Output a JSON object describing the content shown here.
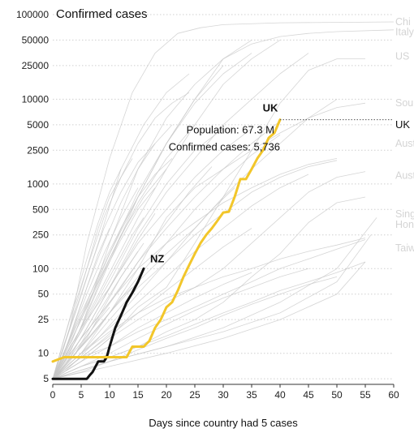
{
  "chart_data": {
    "type": "line",
    "title": "Confirmed cases",
    "xlabel": "Days since country had 5 cases",
    "ylabel": "",
    "xlim": [
      0,
      60
    ],
    "ylim": [
      4.3,
      100000
    ],
    "yscale": "log",
    "grid": "horizontal dotted",
    "x_ticks": [
      0,
      5,
      10,
      15,
      20,
      25,
      30,
      35,
      40,
      45,
      50,
      55,
      60
    ],
    "y_ticks": [
      5,
      10,
      25,
      50,
      100,
      250,
      500,
      1000,
      2500,
      5000,
      10000,
      25000,
      50000,
      100000
    ],
    "x_tick_labels": [
      "0",
      "5",
      "10",
      "15",
      "20",
      "25",
      "30",
      "35",
      "40",
      "45",
      "50",
      "55",
      "60"
    ],
    "y_tick_labels": [
      "5",
      "10",
      "25",
      "50",
      "100",
      "250",
      "500",
      "1000",
      "2500",
      "5000",
      "10000",
      "25000",
      "50000",
      "100000"
    ],
    "highlight_series": [
      {
        "name": "NZ",
        "color": "#111111",
        "x": [
          0,
          1,
          2,
          3,
          4,
          5,
          6,
          6.5,
          7,
          8,
          9,
          9.5,
          10,
          11,
          12,
          13,
          14,
          15,
          16
        ],
        "y": [
          5,
          5,
          5,
          5,
          5,
          5,
          5,
          5.5,
          6,
          8,
          8,
          9,
          12,
          20,
          28,
          40,
          52,
          70,
          100
        ]
      },
      {
        "name": "UK",
        "color": "#f2c62a",
        "x": [
          0,
          1,
          2,
          5,
          8,
          10,
          13,
          14,
          16,
          17,
          18,
          19,
          20,
          21,
          22,
          23,
          24,
          25,
          26,
          27,
          28,
          29,
          30,
          31,
          32,
          33,
          34,
          35,
          36,
          37,
          38,
          39,
          40
        ],
        "y": [
          8,
          8.5,
          9,
          9,
          9,
          9,
          9,
          12,
          12,
          14,
          20,
          25,
          35,
          40,
          55,
          80,
          110,
          150,
          200,
          250,
          300,
          370,
          460,
          470,
          700,
          1140,
          1140,
          1500,
          2000,
          2500,
          3500,
          4000,
          5736
        ]
      }
    ],
    "background_series": [
      {
        "x": [
          0,
          3,
          6,
          10,
          14,
          18,
          22,
          26,
          30,
          40,
          50,
          60
        ],
        "y": [
          5,
          20,
          200,
          2000,
          12000,
          35000,
          60000,
          70000,
          76000,
          80000,
          81000,
          82000
        ]
      },
      {
        "x": [
          0,
          5,
          10,
          15,
          20,
          25,
          30,
          35,
          40,
          45,
          50,
          60
        ],
        "y": [
          5,
          20,
          200,
          1500,
          6000,
          15000,
          30000,
          45000,
          55000,
          60000,
          63000,
          66000
        ]
      },
      {
        "x": [
          0,
          5,
          10,
          15,
          20,
          25,
          30,
          35,
          40,
          45,
          50,
          55
        ],
        "y": [
          5,
          8,
          15,
          35,
          60,
          200,
          700,
          2500,
          9000,
          22000,
          30000,
          30000
        ]
      },
      {
        "x": [
          0,
          5,
          10,
          15,
          20,
          25,
          30,
          35,
          40,
          45,
          50,
          55
        ],
        "y": [
          5,
          10,
          30,
          100,
          400,
          900,
          1500,
          2500,
          4000,
          6000,
          8000,
          9000
        ]
      },
      {
        "x": [
          0,
          4,
          8,
          12,
          16,
          20,
          24
        ],
        "y": [
          5,
          30,
          200,
          1500,
          5000,
          12000,
          20000
        ]
      },
      {
        "x": [
          0,
          5,
          10,
          15,
          20,
          25,
          30
        ],
        "y": [
          5,
          20,
          120,
          700,
          3000,
          10000,
          25000
        ]
      },
      {
        "x": [
          0,
          5,
          10,
          15,
          20,
          25,
          30,
          35
        ],
        "y": [
          5,
          25,
          150,
          800,
          3000,
          10000,
          30000,
          50000
        ]
      },
      {
        "x": [
          0,
          5,
          10,
          15,
          20,
          25,
          30,
          35,
          40,
          45,
          50,
          55
        ],
        "y": [
          5,
          8,
          15,
          25,
          40,
          60,
          100,
          200,
          400,
          800,
          1200,
          1400
        ]
      },
      {
        "x": [
          0,
          5,
          10,
          15,
          20,
          25,
          30,
          35,
          40,
          45,
          50,
          55
        ],
        "y": [
          5,
          7,
          9,
          12,
          18,
          25,
          40,
          80,
          150,
          350,
          600,
          700
        ]
      },
      {
        "x": [
          0,
          10,
          20,
          30,
          40,
          50,
          57
        ],
        "y": [
          5,
          8,
          12,
          20,
          40,
          100,
          400
        ]
      },
      {
        "x": [
          0,
          10,
          20,
          30,
          40,
          50,
          56
        ],
        "y": [
          5,
          8,
          12,
          18,
          30,
          70,
          250
        ]
      },
      {
        "x": [
          0,
          10,
          20,
          30,
          40,
          50,
          55
        ],
        "y": [
          5,
          7,
          10,
          15,
          25,
          50,
          120
        ]
      },
      {
        "x": [
          0,
          5,
          10,
          15,
          20,
          25,
          30,
          35,
          40,
          45,
          50,
          55
        ],
        "y": [
          5,
          10,
          18,
          30,
          45,
          60,
          80,
          100,
          130,
          160,
          190,
          230
        ]
      },
      {
        "x": [
          0,
          5,
          10,
          15,
          20,
          25,
          30,
          35,
          40,
          45,
          50,
          55
        ],
        "y": [
          5,
          9,
          12,
          18,
          25,
          35,
          50,
          70,
          100,
          130,
          170,
          220
        ]
      },
      {
        "x": [
          0,
          5,
          10,
          15,
          20,
          25,
          30,
          35,
          40,
          45,
          50,
          55
        ],
        "y": [
          5,
          7,
          9,
          12,
          16,
          22,
          30,
          40,
          55,
          70,
          90,
          120
        ]
      },
      {
        "x": [
          0,
          5,
          10,
          15,
          20,
          25,
          30,
          35,
          40,
          45,
          50
        ],
        "y": [
          5,
          12,
          30,
          70,
          150,
          300,
          700,
          1500,
          3000,
          6000,
          10000
        ]
      },
      {
        "x": [
          0,
          5,
          10,
          15,
          20,
          25,
          30,
          35,
          40,
          45
        ],
        "y": [
          5,
          15,
          60,
          250,
          800,
          2000,
          5000,
          10000,
          20000,
          35000
        ]
      },
      {
        "x": [
          0,
          5,
          10,
          15,
          20,
          25,
          30,
          35,
          40
        ],
        "y": [
          5,
          20,
          90,
          400,
          1500,
          5000,
          15000,
          30000,
          50000
        ]
      },
      {
        "x": [
          0,
          5,
          10,
          15,
          20,
          25,
          30,
          35
        ],
        "y": [
          5,
          30,
          150,
          700,
          3000,
          9000,
          20000,
          35000
        ]
      },
      {
        "x": [
          0,
          3,
          6,
          9,
          12,
          15,
          18,
          21,
          24
        ],
        "y": [
          5,
          25,
          100,
          400,
          1200,
          3000,
          6000,
          9000,
          12000
        ]
      },
      {
        "x": [
          0,
          3,
          6,
          9,
          12,
          15,
          18,
          21
        ],
        "y": [
          5,
          15,
          60,
          200,
          600,
          1500,
          3000,
          5000
        ]
      },
      {
        "x": [
          0,
          3,
          6,
          9,
          12,
          15,
          18
        ],
        "y": [
          5,
          20,
          80,
          300,
          800,
          1800,
          3000
        ]
      },
      {
        "x": [
          0,
          3,
          6,
          9,
          12,
          15,
          18,
          21
        ],
        "y": [
          5,
          12,
          40,
          120,
          300,
          700,
          1300,
          2000
        ]
      },
      {
        "x": [
          0,
          3,
          6,
          9,
          12,
          15,
          18
        ],
        "y": [
          5,
          10,
          30,
          90,
          220,
          500,
          900
        ]
      },
      {
        "x": [
          0,
          3,
          6,
          9,
          12,
          15
        ],
        "y": [
          5,
          15,
          50,
          150,
          400,
          900
        ]
      },
      {
        "x": [
          0,
          3,
          6,
          9,
          12,
          15,
          18
        ],
        "y": [
          5,
          9,
          20,
          45,
          100,
          220,
          450
        ]
      },
      {
        "x": [
          0,
          3,
          6,
          9,
          12,
          15
        ],
        "y": [
          5,
          8,
          15,
          35,
          80,
          160
        ]
      },
      {
        "x": [
          0,
          2,
          4,
          6,
          8,
          10,
          12,
          14
        ],
        "y": [
          5,
          12,
          35,
          100,
          300,
          700,
          1200,
          2000
        ]
      },
      {
        "x": [
          0,
          2,
          4,
          6,
          8,
          10,
          12
        ],
        "y": [
          5,
          15,
          45,
          130,
          350,
          800,
          1500
        ]
      },
      {
        "x": [
          0,
          2,
          4,
          6,
          8,
          10
        ],
        "y": [
          5,
          10,
          25,
          60,
          150,
          300
        ]
      },
      {
        "x": [
          0,
          2,
          4,
          6,
          8,
          10,
          12,
          14,
          16
        ],
        "y": [
          5,
          8,
          14,
          25,
          45,
          80,
          140,
          250,
          400
        ]
      },
      {
        "x": [
          0,
          4,
          8,
          12,
          16,
          20,
          24,
          28
        ],
        "y": [
          5,
          10,
          25,
          60,
          150,
          350,
          800,
          1600
        ]
      },
      {
        "x": [
          0,
          4,
          8,
          12,
          16,
          20,
          24,
          28,
          32
        ],
        "y": [
          5,
          8,
          15,
          30,
          60,
          120,
          250,
          500,
          900
        ]
      },
      {
        "x": [
          0,
          5,
          10,
          15,
          20,
          25,
          30,
          35
        ],
        "y": [
          5,
          9,
          16,
          30,
          55,
          100,
          180,
          300
        ]
      },
      {
        "x": [
          0,
          5,
          10,
          15,
          20,
          25,
          30,
          35,
          40
        ],
        "y": [
          5,
          12,
          30,
          80,
          200,
          500,
          1100,
          2200,
          3800
        ]
      },
      {
        "x": [
          0,
          5,
          10,
          15,
          20,
          25,
          30,
          35,
          40,
          45
        ],
        "y": [
          5,
          10,
          20,
          40,
          80,
          160,
          300,
          550,
          900,
          1300
        ]
      },
      {
        "x": [
          0,
          5,
          10,
          15,
          20,
          25,
          30
        ],
        "y": [
          5,
          18,
          70,
          300,
          1000,
          2500,
          4500
        ]
      },
      {
        "x": [
          0,
          5,
          10,
          15,
          20,
          25
        ],
        "y": [
          5,
          25,
          130,
          600,
          2000,
          5000
        ]
      },
      {
        "x": [
          0,
          4,
          8,
          12,
          16,
          20
        ],
        "y": [
          5,
          20,
          70,
          250,
          700,
          1500
        ]
      },
      {
        "x": [
          0,
          4,
          8,
          12,
          16
        ],
        "y": [
          5,
          10,
          30,
          80,
          200
        ]
      },
      {
        "x": [
          0,
          5,
          10,
          15,
          20,
          25,
          30,
          35,
          40,
          45,
          50
        ],
        "y": [
          5,
          6,
          8,
          11,
          15,
          20,
          28,
          38,
          50,
          65,
          80
        ]
      },
      {
        "x": [
          0,
          5,
          10,
          15,
          20,
          25,
          30,
          35,
          40,
          45
        ],
        "y": [
          5,
          7,
          10,
          15,
          22,
          32,
          45,
          60,
          80,
          100
        ]
      },
      {
        "x": [
          0,
          5,
          10,
          15,
          20,
          25,
          30,
          35
        ],
        "y": [
          5,
          8,
          12,
          20,
          30,
          45,
          65,
          90
        ]
      },
      {
        "x": [
          0,
          2,
          4,
          6,
          8,
          10,
          12,
          14
        ],
        "y": [
          5,
          7,
          10,
          14,
          20,
          30,
          45,
          60
        ]
      },
      {
        "x": [
          0,
          2,
          4,
          6,
          8,
          10
        ],
        "y": [
          5,
          7,
          11,
          16,
          24,
          35
        ]
      },
      {
        "x": [
          0,
          2,
          4,
          6,
          8,
          10,
          12
        ],
        "y": [
          5,
          6,
          8,
          10,
          13,
          17,
          22
        ]
      },
      {
        "x": [
          0,
          5,
          10,
          15,
          20,
          25,
          30,
          35,
          40,
          45,
          50
        ],
        "y": [
          5,
          15,
          40,
          100,
          200,
          350,
          600,
          900,
          1300,
          1700,
          2000
        ]
      },
      {
        "x": [
          0,
          5,
          10,
          15,
          20,
          25,
          30,
          35,
          40,
          45,
          50
        ],
        "y": [
          5,
          10,
          25,
          60,
          120,
          250,
          450,
          800,
          1200,
          1600,
          1900
        ]
      },
      {
        "x": [
          0,
          5,
          10,
          15,
          20,
          25,
          30,
          35
        ],
        "y": [
          5,
          20,
          60,
          200,
          500,
          1200,
          2500,
          4500
        ]
      },
      {
        "x": [
          0,
          5,
          10,
          15,
          20,
          25,
          30,
          35,
          40
        ],
        "y": [
          5,
          15,
          40,
          120,
          300,
          700,
          1500,
          3000,
          5500
        ]
      }
    ],
    "faded_labels": [
      {
        "text": "Chi",
        "y": 82000
      },
      {
        "text": "Italy",
        "y": 62000
      },
      {
        "text": "US",
        "y": 32000
      },
      {
        "text": "Sou",
        "y": 9000
      },
      {
        "text": "Aust",
        "y": 3000
      },
      {
        "text": "Aust",
        "y": 1250
      },
      {
        "text": "Sing",
        "y": 440
      },
      {
        "text": "Hon",
        "y": 330
      },
      {
        "text": "Taiw",
        "y": 175
      }
    ],
    "right_label": {
      "text": "UK",
      "y": 5000
    },
    "tooltip": {
      "label": "UK",
      "population": "Population: 67.3 M",
      "confirmed": "Confirmed cases: 5,736"
    }
  }
}
